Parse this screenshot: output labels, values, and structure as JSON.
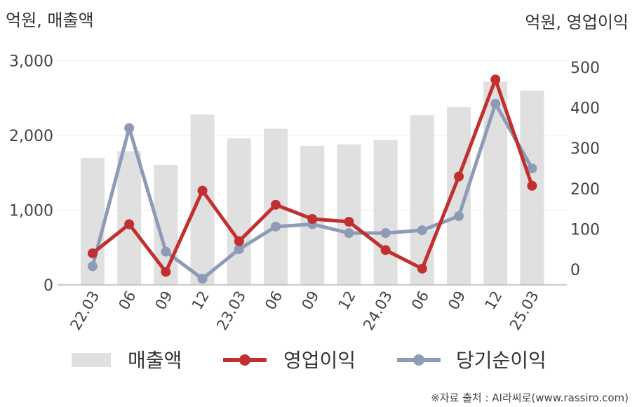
{
  "chart_data": {
    "type": "bar+line",
    "left_unit_label": "억원, 매출액",
    "right_unit_label": "억원, 영업이익",
    "categories": [
      "22.03",
      "06",
      "09",
      "12",
      "23.03",
      "06",
      "09",
      "12",
      "24.03",
      "06",
      "09",
      "12",
      "25.03"
    ],
    "left_axis": {
      "range": [
        0,
        3000
      ],
      "ticks": [
        "0",
        "1,000",
        "2,000",
        "3,000"
      ]
    },
    "right_axis": {
      "range": [
        -40,
        520
      ],
      "ticks": [
        "0",
        "100",
        "200",
        "300",
        "400",
        "500"
      ]
    },
    "series": [
      {
        "name": "매출액",
        "kind": "bar",
        "axis": "left",
        "color": "#e0e0e0",
        "values": [
          1700,
          1790,
          1605,
          2280,
          1960,
          2090,
          1860,
          1880,
          1940,
          2270,
          2380,
          2720,
          2600
        ]
      },
      {
        "name": "영업이익",
        "kind": "line",
        "axis": "right",
        "color": "#c13030",
        "values": [
          40,
          112,
          -6,
          195,
          70,
          160,
          125,
          118,
          48,
          2,
          230,
          470,
          207
        ]
      },
      {
        "name": "당기순이익",
        "kind": "line",
        "axis": "right",
        "color": "#8e9bb6",
        "values": [
          8,
          350,
          44,
          -23,
          50,
          106,
          112,
          90,
          90,
          97,
          132,
          410,
          250
        ]
      }
    ],
    "grid": true,
    "legend_position": "bottom"
  },
  "source_note": "※자료 출처 : AI라씨로(www.rassiro.com)"
}
